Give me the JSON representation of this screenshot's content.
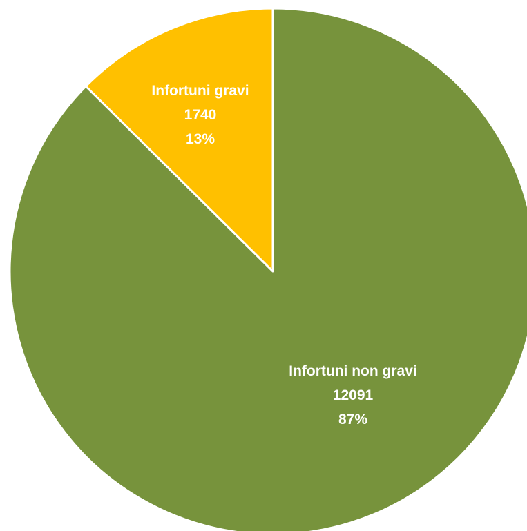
{
  "chart_data": {
    "type": "pie",
    "title": "",
    "start_angle_deg": 0,
    "direction": "clockwise",
    "slices": [
      {
        "name": "Infortuni gravi",
        "value": 1740,
        "value_label": "1740",
        "percent_label": "13%",
        "color": "#FFC000"
      },
      {
        "name": "Infortuni non gravi",
        "value": 12091,
        "value_label": "12091",
        "percent_label": "87%",
        "color": "#77933C"
      }
    ],
    "border_color": "#FFFFFF",
    "label_color": "#FFFFFF"
  }
}
